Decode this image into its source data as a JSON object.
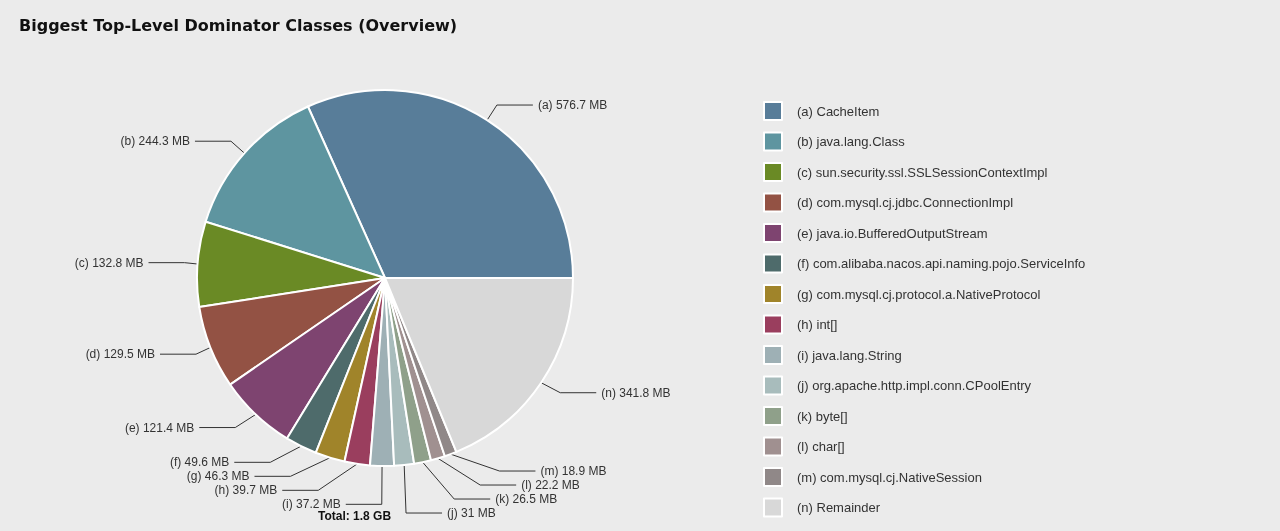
{
  "chart_data": {
    "type": "pie",
    "title": "Biggest Top-Level Dominator Classes (Overview)",
    "categories": [
      "(a) CacheItem",
      "(b) java.lang.Class",
      "(c) sun.security.ssl.SSLSessionContextImpl",
      "(d) com.mysql.cj.jdbc.ConnectionImpl",
      "(e) java.io.BufferedOutputStream",
      "(f) com.alibaba.nacos.api.naming.pojo.ServiceInfo",
      "(g) com.mysql.cj.protocol.a.NativeProtocol",
      "(h) int[]",
      "(i) java.lang.String",
      "(j) org.apache.http.impl.conn.CPoolEntry",
      "(k) byte[]",
      "(l) char[]",
      "(m) com.mysql.cj.NativeSession",
      "(n) Remainder"
    ],
    "values": [
      576.7,
      244.3,
      132.8,
      129.5,
      121.4,
      49.6,
      46.3,
      39.7,
      37.2,
      31,
      26.5,
      22.2,
      18.9,
      341.8
    ],
    "value_labels": [
      "(a) 576.7 MB",
      "(b) 244.3 MB",
      "(c) 132.8 MB",
      "(d) 129.5 MB",
      "(e) 121.4 MB",
      "(f) 49.6 MB",
      "(g) 46.3 MB",
      "(h) 39.7 MB",
      "(i) 37.2 MB",
      "(j) 31 MB",
      "(k) 26.5 MB",
      "(l) 22.2 MB",
      "(m) 18.9 MB",
      "(n) 341.8 MB"
    ],
    "colors": [
      "#587d99",
      "#5e95a0",
      "#6a8a25",
      "#935244",
      "#7e4470",
      "#4e6b6b",
      "#a0842a",
      "#9a3e5e",
      "#9eb0b5",
      "#a8bcbc",
      "#8fa08a",
      "#a09090",
      "#908888",
      "#d8d8d8"
    ],
    "legend": "right",
    "annotations": [
      "Total: 1.8 GB"
    ]
  }
}
